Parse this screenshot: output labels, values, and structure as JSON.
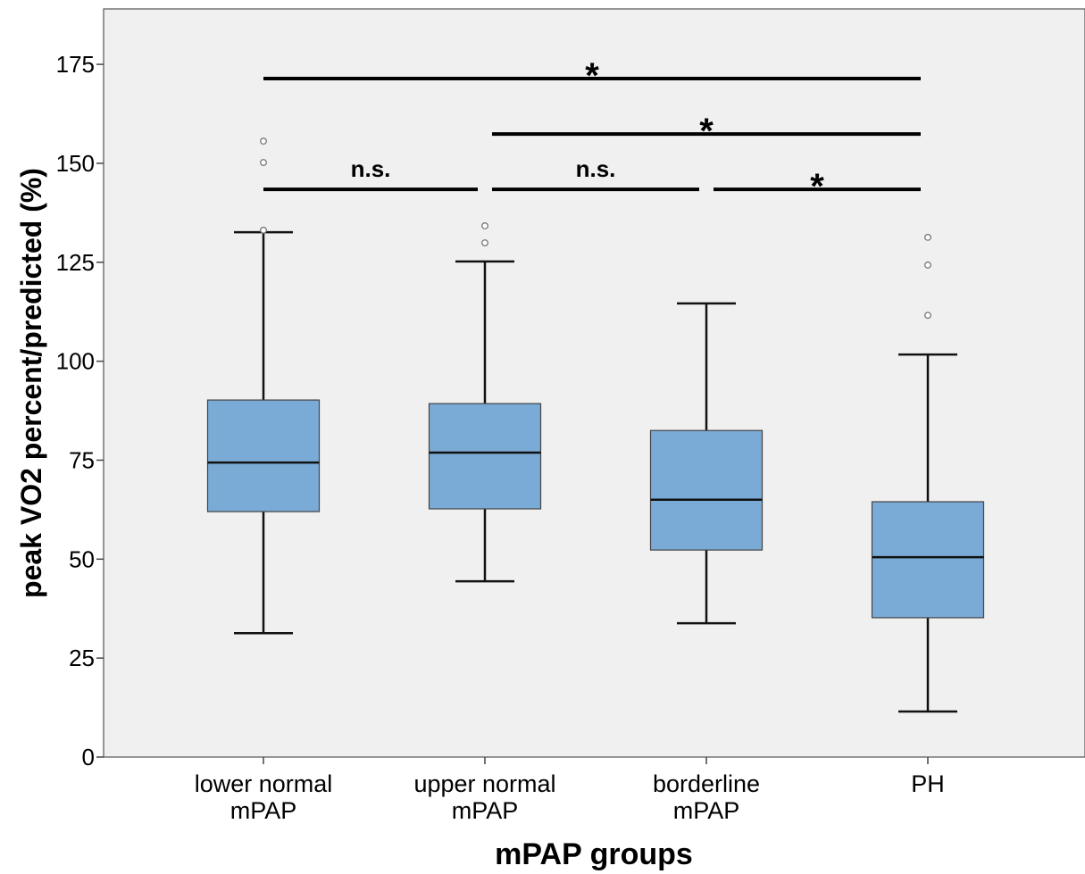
{
  "chart_data": {
    "type": "box",
    "x_label": "mPAP groups",
    "y_label": "peak VO2 percent/predicted (%)",
    "categories": [
      "lower normal\nmPAP",
      "upper normal\nmPAP",
      "borderline\nmPAP",
      "PH"
    ],
    "box_color": "#7aaad6",
    "boxes": [
      {
        "min": 31.3,
        "q1": 62.0,
        "median": 74.4,
        "q3": 90.2,
        "max": 132.6,
        "outliers": [
          155.6,
          150.2,
          133.1
        ]
      },
      {
        "min": 44.4,
        "q1": 62.7,
        "median": 76.9,
        "q3": 89.3,
        "max": 125.2,
        "outliers": [
          134.2,
          129.9
        ]
      },
      {
        "min": 33.8,
        "q1": 52.3,
        "median": 65.0,
        "q3": 82.5,
        "max": 114.6,
        "outliers": []
      },
      {
        "min": 11.5,
        "q1": 35.2,
        "median": 50.5,
        "q3": 64.5,
        "max": 101.7,
        "outliers": [
          131.3,
          124.3,
          111.6
        ]
      }
    ],
    "annotations": [
      {
        "text": "*",
        "y": 171.4,
        "between": [
          0,
          3
        ]
      },
      {
        "text": "*",
        "y": 157.4,
        "between": [
          1,
          3
        ]
      },
      {
        "text": "n.s.",
        "y": 143.4,
        "between": [
          0,
          1
        ]
      },
      {
        "text": "n.s.",
        "y": 143.4,
        "between": [
          1,
          2
        ]
      },
      {
        "text": "*",
        "y": 143.4,
        "between": [
          2,
          3
        ]
      }
    ],
    "ylim": [
      0,
      189
    ],
    "yticks": [
      0,
      25,
      50,
      75,
      100,
      125,
      150,
      175
    ]
  }
}
